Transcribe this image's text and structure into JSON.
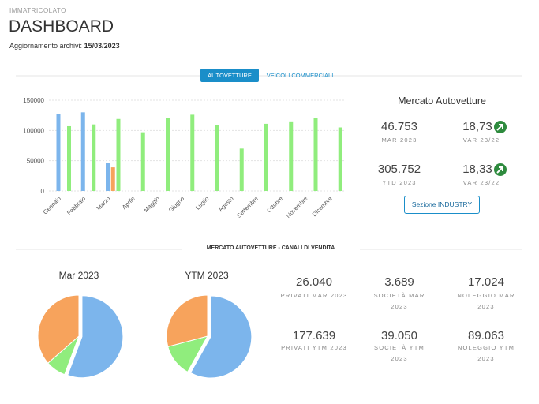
{
  "header": {
    "section": "IMMATRICOLATO",
    "title": "DASHBOARD",
    "update_label": "Aggiornamento archivi:",
    "update_date": "15/03/2023"
  },
  "tabs": [
    "AUTOVETTURE",
    "VEICOLI COMMERCIALI"
  ],
  "chart_data": [
    {
      "type": "bar",
      "categories": [
        "Gennaio",
        "Febbraio",
        "Marzo",
        "Aprile",
        "Maggio",
        "Giugno",
        "Luglio",
        "Agosto",
        "Settembre",
        "Ottobre",
        "Novembre",
        "Dicembre"
      ],
      "series": [
        {
          "color": "#7cb5ec",
          "values": [
            127000,
            130000,
            46000,
            null,
            null,
            null,
            null,
            null,
            null,
            null,
            null,
            null
          ]
        },
        {
          "color": "#f7a35c",
          "values": [
            null,
            null,
            39000,
            null,
            null,
            null,
            null,
            null,
            null,
            null,
            null,
            null
          ]
        },
        {
          "color": "#90ed7d",
          "values": [
            107000,
            110000,
            119000,
            97000,
            120000,
            126000,
            109000,
            70000,
            111000,
            115000,
            120000,
            105000
          ]
        }
      ],
      "ylim": [
        0,
        150000
      ],
      "yticks": [
        0,
        50000,
        100000,
        150000
      ],
      "grid": true
    },
    {
      "type": "pie",
      "title": "Mar 2023",
      "values": [
        26040,
        3689,
        17024
      ],
      "colors": [
        "#7cb5ec",
        "#90ed7d",
        "#f7a35c"
      ]
    },
    {
      "type": "pie",
      "title": "YTM 2023",
      "values": [
        177639,
        39050,
        89063
      ],
      "colors": [
        "#7cb5ec",
        "#90ed7d",
        "#f7a35c"
      ]
    }
  ],
  "market": {
    "title": "Mercato Autovetture",
    "kpis": [
      {
        "value": "46.753",
        "label": "MAR 2023"
      },
      {
        "value": "18,73",
        "label": "VAR 23/22"
      },
      {
        "value": "305.752",
        "label": "YTD 2023"
      },
      {
        "value": "18,33",
        "label": "VAR 23/22"
      }
    ],
    "button": "Sezione INDUSTRY"
  },
  "channels": {
    "title": "MERCATO AUTOVETTURE - CANALI DI VENDITA",
    "kpis": [
      {
        "value": "26.040",
        "label": "PRIVATI MAR 2023"
      },
      {
        "value": "3.689",
        "label": "SOCIETÀ MAR 2023"
      },
      {
        "value": "17.024",
        "label": "NOLEGGIO MAR 2023"
      },
      {
        "value": "177.639",
        "label": "PRIVATI YTM 2023"
      },
      {
        "value": "39.050",
        "label": "SOCIETÀ YTM 2023"
      },
      {
        "value": "89.063",
        "label": "NOLEGGIO YTM 2023"
      }
    ]
  }
}
